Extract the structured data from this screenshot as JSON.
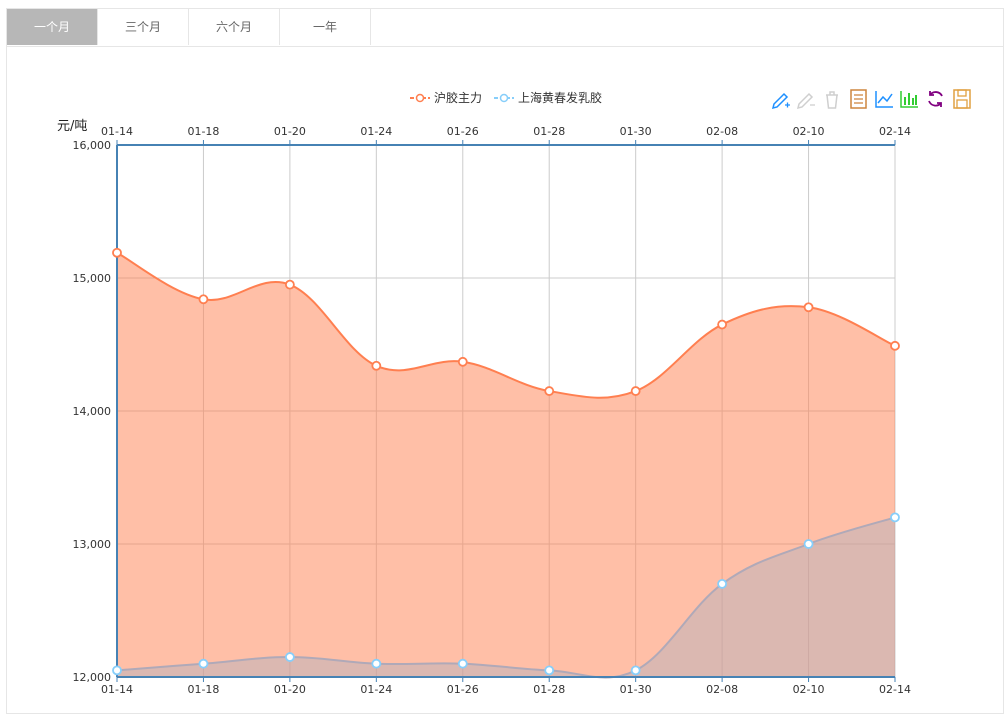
{
  "tabs": [
    {
      "label": "一个月",
      "active": true
    },
    {
      "label": "三个月",
      "active": false
    },
    {
      "label": "六个月",
      "active": false
    },
    {
      "label": "一年",
      "active": false
    }
  ],
  "toolbox": {
    "icons": [
      "mark-pen-icon",
      "mark-undo-icon",
      "mark-clear-icon",
      "data-view-icon",
      "line-chart-icon",
      "bar-chart-icon",
      "restore-icon",
      "save-image-icon"
    ]
  },
  "chart_data": {
    "type": "area",
    "ylabel": "元/吨",
    "categories": [
      "01-14",
      "01-18",
      "01-20",
      "01-24",
      "01-26",
      "01-28",
      "01-30",
      "02-08",
      "02-10",
      "02-14"
    ],
    "ylim": [
      12000,
      16000
    ],
    "yticks": [
      12000,
      13000,
      14000,
      15000,
      16000
    ],
    "ytick_labels": [
      "12,000",
      "13,000",
      "14,000",
      "15,000",
      "16,000"
    ],
    "legend_position": "top-center",
    "grid": true,
    "series": [
      {
        "name": "沪胶主力",
        "color": "#ff7f50",
        "values": [
          15190,
          14840,
          14950,
          14340,
          14370,
          14150,
          14150,
          14650,
          14780,
          14490
        ]
      },
      {
        "name": "上海黄春发乳胶",
        "color": "#87cefa",
        "values": [
          12050,
          12100,
          12150,
          12100,
          12100,
          12050,
          12050,
          12700,
          13000,
          13200
        ]
      }
    ]
  }
}
